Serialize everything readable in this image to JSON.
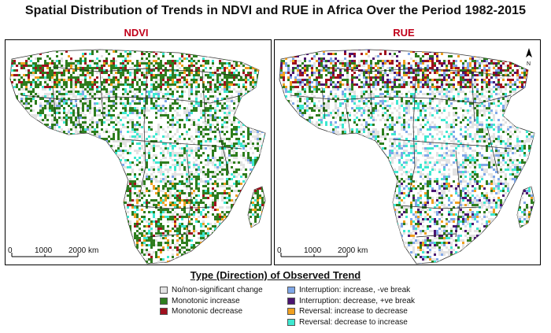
{
  "title": "Spatial Distribution of Trends in NDVI and RUE in Africa Over the Period 1982-2015",
  "panels": [
    {
      "label": "NDVI"
    },
    {
      "label": "RUE"
    }
  ],
  "north_label": "N",
  "scale_bar": {
    "ticks": [
      "0",
      "1000",
      "2000 km"
    ]
  },
  "legend": {
    "title": "Type (Direction) of Observed Trend",
    "left_items": [
      {
        "label": "No/non-significant change",
        "color": "#e3e3e3"
      },
      {
        "label": "Monotonic increase",
        "color": "#2e7d1e"
      },
      {
        "label": "Monotonic decrease",
        "color": "#a0101e"
      }
    ],
    "right_items": [
      {
        "label": "Interruption: increase, -ve break",
        "color": "#7fa7e8"
      },
      {
        "label": "Interruption: decrease, +ve break",
        "color": "#4b1470"
      },
      {
        "label": "Reversal: increase to decrease",
        "color": "#f0a020"
      },
      {
        "label": "Reversal: decrease to increase",
        "color": "#3de8d0"
      }
    ]
  }
}
